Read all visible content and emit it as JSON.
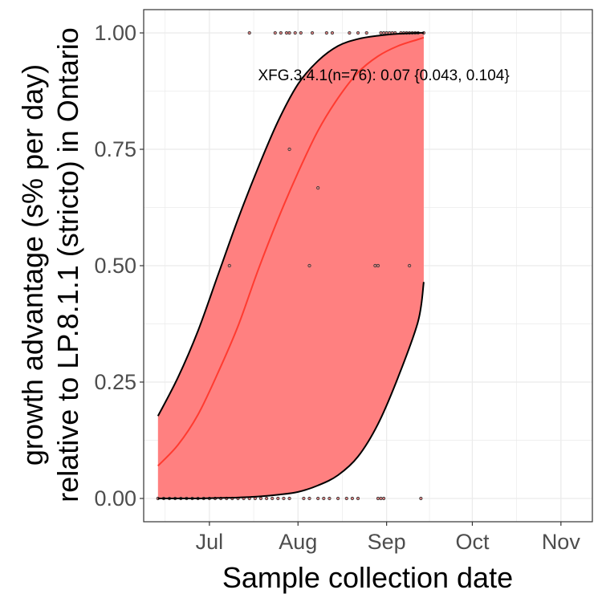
{
  "chart_data": {
    "type": "scatter",
    "title": "",
    "xlabel": "Sample collection date",
    "ylabel_line1": "growth advantage (s% per day)",
    "ylabel_line2": "relative to LP.8.1.1 (stricto) in Ontario",
    "x_ticks": [
      {
        "date": "2025-07-01",
        "label": "Jul"
      },
      {
        "date": "2025-08-01",
        "label": "Aug"
      },
      {
        "date": "2025-09-01",
        "label": "Sep"
      },
      {
        "date": "2025-10-01",
        "label": "Oct"
      },
      {
        "date": "2025-11-01",
        "label": "Nov"
      }
    ],
    "xlim": [
      "2025-06-08",
      "2025-11-12"
    ],
    "ylim": [
      -0.05,
      1.05
    ],
    "y_ticks": [
      {
        "value": 0.0,
        "label": "0.00"
      },
      {
        "value": 0.25,
        "label": "0.25"
      },
      {
        "value": 0.5,
        "label": "0.50"
      },
      {
        "value": 0.75,
        "label": "0.75"
      },
      {
        "value": 1.0,
        "label": "1.00"
      }
    ],
    "grid": true,
    "colors": {
      "ribbon": "#ff8080",
      "fit_line": "#ff3b30",
      "ci_line": "#000000",
      "points_fill": "#d98080",
      "points_stroke": "#333333",
      "grid": "#ebebeb",
      "panel_border": "#333333"
    },
    "annotation": {
      "text": "XFG.3.4.1(n=76): 0.07 {0.043, 0.104}",
      "x": "2025-08-31",
      "y": 0.91
    },
    "fit": {
      "x": [
        "2025-06-13",
        "2025-06-20",
        "2025-06-27",
        "2025-07-04",
        "2025-07-11",
        "2025-07-18",
        "2025-07-25",
        "2025-08-01",
        "2025-08-08",
        "2025-08-15",
        "2025-08-22",
        "2025-08-29",
        "2025-09-05",
        "2025-09-12",
        "2025-09-14"
      ],
      "y": [
        0.07,
        0.115,
        0.18,
        0.27,
        0.37,
        0.49,
        0.6,
        0.7,
        0.79,
        0.86,
        0.915,
        0.95,
        0.972,
        0.986,
        0.99
      ],
      "lower": [
        0.0,
        0.0,
        0.0,
        0.001,
        0.002,
        0.004,
        0.008,
        0.014,
        0.028,
        0.05,
        0.09,
        0.16,
        0.26,
        0.38,
        0.465
      ],
      "upper": [
        0.177,
        0.26,
        0.36,
        0.48,
        0.6,
        0.71,
        0.81,
        0.89,
        0.94,
        0.972,
        0.987,
        0.994,
        0.998,
        1.0,
        1.0
      ]
    },
    "points": [
      {
        "x": "2025-06-13",
        "y": 0.0
      },
      {
        "x": "2025-06-15",
        "y": 0.0
      },
      {
        "x": "2025-06-17",
        "y": 0.0
      },
      {
        "x": "2025-06-19",
        "y": 0.0
      },
      {
        "x": "2025-06-21",
        "y": 0.0
      },
      {
        "x": "2025-06-23",
        "y": 0.0
      },
      {
        "x": "2025-06-25",
        "y": 0.0
      },
      {
        "x": "2025-06-27",
        "y": 0.0
      },
      {
        "x": "2025-06-29",
        "y": 0.0
      },
      {
        "x": "2025-07-01",
        "y": 0.0
      },
      {
        "x": "2025-07-03",
        "y": 0.0
      },
      {
        "x": "2025-07-05",
        "y": 0.0
      },
      {
        "x": "2025-07-07",
        "y": 0.0
      },
      {
        "x": "2025-07-09",
        "y": 0.0
      },
      {
        "x": "2025-07-11",
        "y": 0.0
      },
      {
        "x": "2025-07-13",
        "y": 0.0
      },
      {
        "x": "2025-07-15",
        "y": 0.0
      },
      {
        "x": "2025-07-17",
        "y": 0.0
      },
      {
        "x": "2025-07-19",
        "y": 0.0
      },
      {
        "x": "2025-07-21",
        "y": 0.0
      },
      {
        "x": "2025-07-23",
        "y": 0.0
      },
      {
        "x": "2025-07-25",
        "y": 0.0
      },
      {
        "x": "2025-07-27",
        "y": 0.0
      },
      {
        "x": "2025-07-29",
        "y": 0.0
      },
      {
        "x": "2025-08-03",
        "y": 0.0
      },
      {
        "x": "2025-08-05",
        "y": 0.0
      },
      {
        "x": "2025-08-08",
        "y": 0.0
      },
      {
        "x": "2025-08-10",
        "y": 0.0
      },
      {
        "x": "2025-08-12",
        "y": 0.0
      },
      {
        "x": "2025-08-15",
        "y": 0.0
      },
      {
        "x": "2025-08-18",
        "y": 0.0
      },
      {
        "x": "2025-08-20",
        "y": 0.0
      },
      {
        "x": "2025-08-22",
        "y": 0.0
      },
      {
        "x": "2025-08-29",
        "y": 0.0
      },
      {
        "x": "2025-08-30",
        "y": 0.0
      },
      {
        "x": "2025-08-31",
        "y": 0.0
      },
      {
        "x": "2025-09-13",
        "y": 0.0
      },
      {
        "x": "2025-07-08",
        "y": 0.5
      },
      {
        "x": "2025-08-05",
        "y": 0.5
      },
      {
        "x": "2025-08-28",
        "y": 0.5
      },
      {
        "x": "2025-08-29",
        "y": 0.5
      },
      {
        "x": "2025-09-09",
        "y": 0.5
      },
      {
        "x": "2025-08-08",
        "y": 0.667
      },
      {
        "x": "2025-07-29",
        "y": 0.75
      },
      {
        "x": "2025-07-15",
        "y": 1.0
      },
      {
        "x": "2025-07-24",
        "y": 1.0
      },
      {
        "x": "2025-07-26",
        "y": 1.0
      },
      {
        "x": "2025-07-28",
        "y": 1.0
      },
      {
        "x": "2025-07-29",
        "y": 1.0
      },
      {
        "x": "2025-07-31",
        "y": 1.0
      },
      {
        "x": "2025-08-02",
        "y": 1.0
      },
      {
        "x": "2025-08-06",
        "y": 1.0
      },
      {
        "x": "2025-08-11",
        "y": 1.0
      },
      {
        "x": "2025-08-13",
        "y": 1.0
      },
      {
        "x": "2025-08-19",
        "y": 1.0
      },
      {
        "x": "2025-08-22",
        "y": 1.0
      },
      {
        "x": "2025-08-25",
        "y": 1.0
      },
      {
        "x": "2025-08-30",
        "y": 1.0
      },
      {
        "x": "2025-08-31",
        "y": 1.0
      },
      {
        "x": "2025-09-01",
        "y": 1.0
      },
      {
        "x": "2025-09-02",
        "y": 1.0
      },
      {
        "x": "2025-09-03",
        "y": 1.0
      },
      {
        "x": "2025-09-04",
        "y": 1.0
      },
      {
        "x": "2025-09-06",
        "y": 1.0
      },
      {
        "x": "2025-09-07",
        "y": 1.0
      },
      {
        "x": "2025-09-08",
        "y": 1.0
      },
      {
        "x": "2025-09-09",
        "y": 1.0
      },
      {
        "x": "2025-09-10",
        "y": 1.0
      },
      {
        "x": "2025-09-11",
        "y": 1.0
      },
      {
        "x": "2025-09-12",
        "y": 1.0
      },
      {
        "x": "2025-09-14",
        "y": 1.0
      }
    ]
  }
}
